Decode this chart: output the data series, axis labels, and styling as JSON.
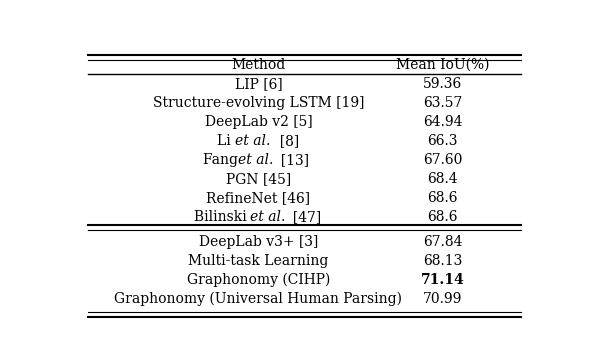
{
  "col_headers": [
    "Method",
    "Mean IoU(%)"
  ],
  "rows_group1": [
    [
      "LIP [6]",
      "59.36",
      false
    ],
    [
      "Structure-evolving LSTM [19]",
      "63.57",
      false
    ],
    [
      "DeepLab v2 [5]",
      "64.94",
      false
    ],
    [
      "Li et al.  [8]",
      "66.3",
      true
    ],
    [
      "Fang et al.  [13]",
      "67.60",
      true
    ],
    [
      "PGN [45]",
      "68.4",
      false
    ],
    [
      "RefineNet [46]",
      "68.6",
      false
    ],
    [
      "Bilinski et al.  [47]",
      "68.6",
      true
    ]
  ],
  "rows_group2": [
    [
      "DeepLab v3+ [3]",
      "67.84",
      false,
      false
    ],
    [
      "Multi-task Learning",
      "68.13",
      false,
      false
    ],
    [
      "Graphonomy (CIHP)",
      "71.14",
      false,
      true
    ],
    [
      "Graphonomy (Universal Human Parsing)",
      "70.99",
      false,
      false
    ]
  ],
  "bg_color": "#ffffff",
  "font_size": 10
}
